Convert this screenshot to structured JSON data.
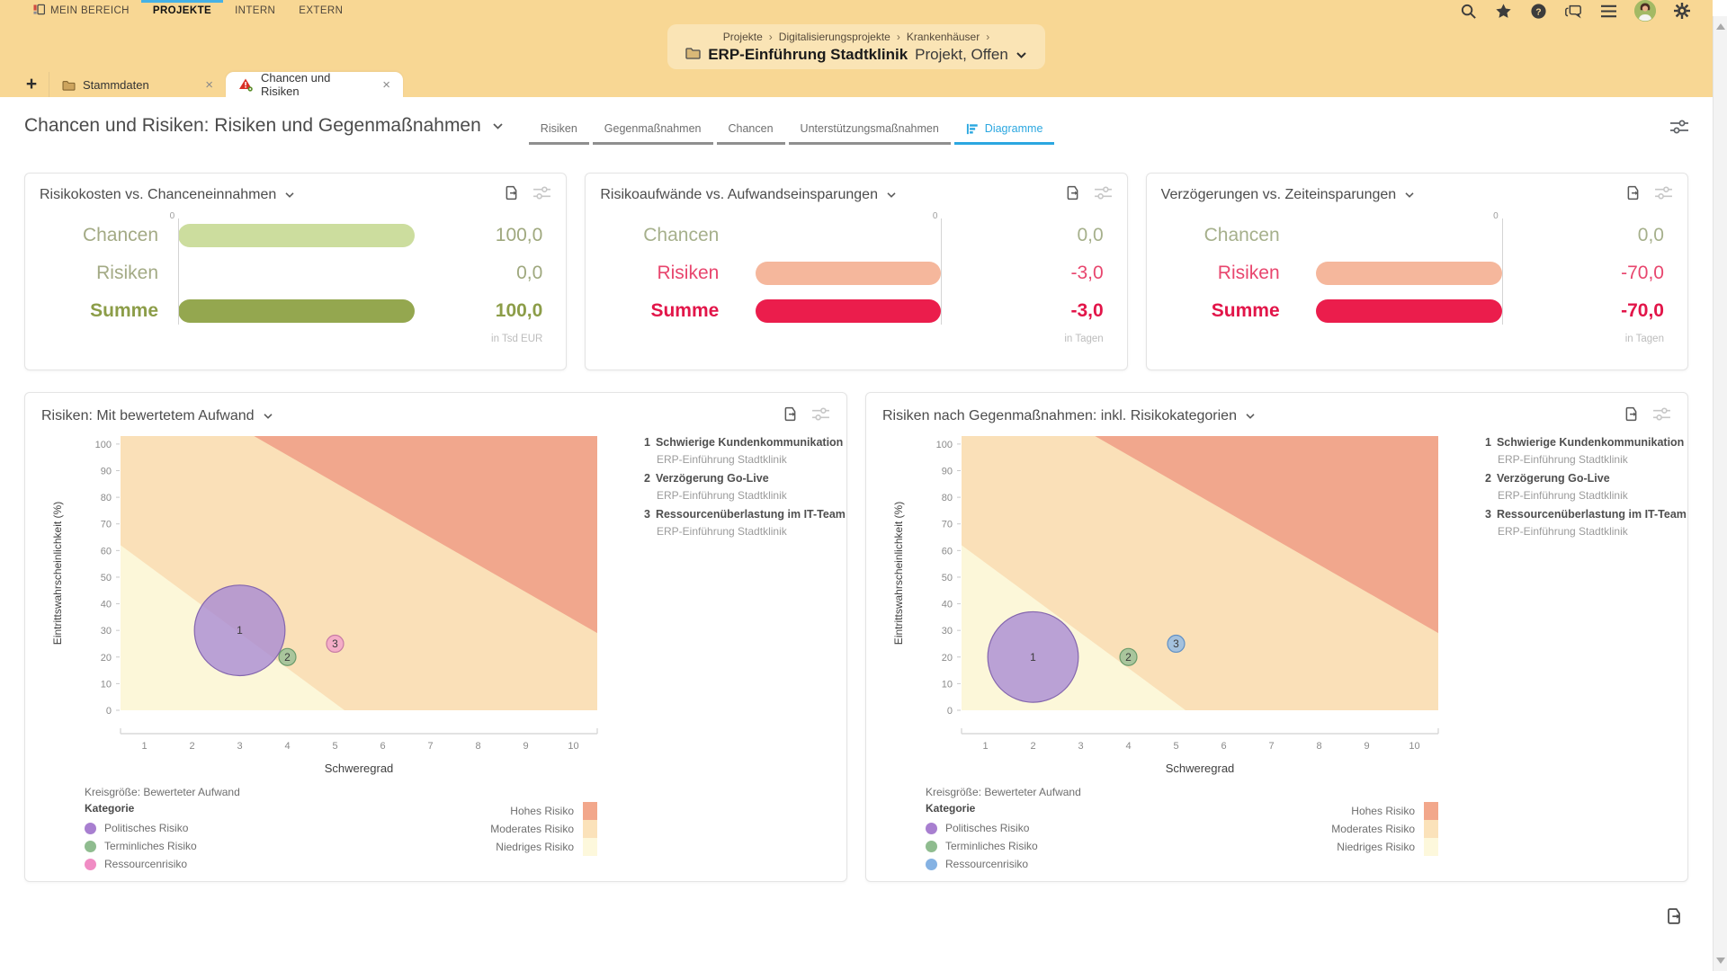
{
  "app": {
    "nav": {
      "accent_color": "#45B1E5",
      "items": [
        {
          "label": "MEIN BEREICH",
          "active": false,
          "icon": "workspace-icon"
        },
        {
          "label": "PROJEKTE",
          "active": true
        },
        {
          "label": "INTERN",
          "active": false
        },
        {
          "label": "EXTERN",
          "active": false
        }
      ],
      "icons": [
        "search-icon",
        "star-icon",
        "help-icon",
        "chat-icon",
        "menu-icon",
        "user-avatar",
        "gear-icon"
      ]
    },
    "breadcrumb": {
      "separator": "›",
      "path": [
        "Projekte",
        "Digitalisierungsprojekte",
        "Krankenhäuser"
      ],
      "current": "ERP-Einführung Stadtklinik",
      "status": "Projekt, Offen"
    },
    "doc_tabs": [
      {
        "label": "Stammdaten",
        "icon": "folder-icon",
        "active": false
      },
      {
        "label": "Chancen und Risiken",
        "icon": "risk-warning-icon",
        "active": true
      }
    ],
    "page_title": "Chancen und Risiken: Risiken und Gegenmaßnahmen",
    "subtabs": [
      {
        "label": "Risiken",
        "active": false
      },
      {
        "label": "Gegenmaßnahmen",
        "active": false
      },
      {
        "label": "Chancen",
        "active": false
      },
      {
        "label": "Unterstützungsmaßnahmen",
        "active": false
      },
      {
        "label": "Diagramme",
        "active": true,
        "icon": "bar-chart-icon"
      }
    ],
    "subtab_active_color": "#2BA7E0"
  },
  "summary_cards": [
    {
      "title": "Risikokosten vs. Chanceneinnahmen",
      "unit": "in Tsd EUR",
      "direction": "positive",
      "zero_label": "0",
      "chart_data": {
        "type": "bar",
        "categories": [
          "Chancen",
          "Risiken",
          "Summe"
        ],
        "values": [
          100.0,
          0.0,
          100.0
        ]
      },
      "rows": [
        {
          "label": "Chancen",
          "value": "100,0",
          "fraction": 1,
          "bar_color": "#CCDD9E",
          "label_color": "#A3AA85",
          "value_color": "#9FA87E",
          "bold": false
        },
        {
          "label": "Risiken",
          "value": "0,0",
          "fraction": 0,
          "bar_color": "#CCDD9E",
          "label_color": "#A3AA85",
          "value_color": "#9FA87E",
          "bold": false
        },
        {
          "label": "Summe",
          "value": "100,0",
          "fraction": 1,
          "bar_color": "#94A74F",
          "label_color": "#8C9D48",
          "value_color": "#8C9D48",
          "bold": true
        }
      ]
    },
    {
      "title": "Risikoaufwände vs. Aufwandseinsparungen",
      "unit": "in Tagen",
      "direction": "negative",
      "zero_label": "0",
      "chart_data": {
        "type": "bar",
        "categories": [
          "Chancen",
          "Risiken",
          "Summe"
        ],
        "values": [
          0.0,
          -3.0,
          -3.0
        ]
      },
      "rows": [
        {
          "label": "Chancen",
          "value": "0,0",
          "fraction": 0,
          "bar_color": "#F5B79C",
          "label_color": "#A6B08C",
          "value_color": "#A6B08C",
          "bold": false
        },
        {
          "label": "Risiken",
          "value": "-3,0",
          "fraction": 1,
          "bar_color": "#F5B79C",
          "label_color": "#E8466E",
          "value_color": "#E8466E",
          "bold": false
        },
        {
          "label": "Summe",
          "value": "-3,0",
          "fraction": 1,
          "bar_color": "#EB1D4C",
          "label_color": "#E21549",
          "value_color": "#E21549",
          "bold": true
        }
      ]
    },
    {
      "title": "Verzögerungen vs. Zeiteinsparungen",
      "unit": "in Tagen",
      "direction": "negative",
      "zero_label": "0",
      "chart_data": {
        "type": "bar",
        "categories": [
          "Chancen",
          "Risiken",
          "Summe"
        ],
        "values": [
          0.0,
          -70.0,
          -70.0
        ]
      },
      "rows": [
        {
          "label": "Chancen",
          "value": "0,0",
          "fraction": 0,
          "bar_color": "#F5B79C",
          "label_color": "#A6B08C",
          "value_color": "#A6B08C",
          "bold": false
        },
        {
          "label": "Risiken",
          "value": "-70,0",
          "fraction": 1,
          "bar_color": "#F5B79C",
          "label_color": "#E8466E",
          "value_color": "#E8466E",
          "bold": false
        },
        {
          "label": "Summe",
          "value": "-70,0",
          "fraction": 1,
          "bar_color": "#EB1D4C",
          "label_color": "#E21549",
          "value_color": "#E21549",
          "bold": true
        }
      ]
    }
  ],
  "charts": [
    {
      "title": "Risiken: Mit bewertetem Aufwand",
      "chart_data": {
        "type": "scatter",
        "xlabel": "Schweregrad",
        "ylabel": "Eintrittswahrscheinlichkeit (%)",
        "xlim": [
          0.5,
          10.5
        ],
        "ylim": [
          0,
          103
        ],
        "x_ticks": [
          1,
          2,
          3,
          4,
          5,
          6,
          7,
          8,
          9,
          10
        ],
        "y_ticks": [
          0,
          10,
          20,
          30,
          40,
          50,
          60,
          70,
          80,
          90,
          100
        ],
        "size_caption": "Kreisgröße: Bewerteter Aufwand",
        "bands": [
          {
            "label": "Moderates Risiko",
            "color": "#FAE0B8",
            "polygon": "base"
          },
          {
            "label": "Niedriges Risiko",
            "color": "#FCF7D9",
            "polygon": [
              [
                0.5,
                62
              ],
              [
                0.5,
                0
              ],
              [
                5.2,
                0
              ]
            ]
          },
          {
            "label": "Hohes Risiko",
            "color": "#F1A78D",
            "polygon": [
              [
                3.3,
                103
              ],
              [
                10.5,
                103
              ],
              [
                10.5,
                29
              ]
            ]
          }
        ],
        "points": [
          {
            "n": "1",
            "x": 3,
            "y": 30,
            "r": 17,
            "category": "Politisches Risiko",
            "fill": "#A98BD3",
            "stroke": "#8466AE"
          },
          {
            "n": "2",
            "x": 4,
            "y": 20,
            "r": 3.2,
            "category": "Terminliches Risiko",
            "fill": "#95BE95",
            "stroke": "#6B9B6B"
          },
          {
            "n": "3",
            "x": 5,
            "y": 25,
            "r": 3.2,
            "category": "Ressourcenrisiko",
            "fill": "#F2A0CB",
            "stroke": "#C77BA4"
          }
        ],
        "category_legend": {
          "title": "Kategorie",
          "items": [
            {
              "label": "Politisches Risiko",
              "color": "#A87FD0"
            },
            {
              "label": "Terminliches Risiko",
              "color": "#8FBC8F"
            },
            {
              "label": "Ressourcenrisiko",
              "color": "#F08CC4"
            }
          ]
        },
        "band_legend": [
          {
            "label": "Hohes Risiko",
            "color": "#F2A78B"
          },
          {
            "label": "Moderates Risiko",
            "color": "#FBE2BA"
          },
          {
            "label": "Niedriges Risiko",
            "color": "#FDF8DC"
          }
        ]
      },
      "items": [
        {
          "n": "1",
          "title": "Schwierige Kundenkommunikation",
          "subtitle": "ERP-Einführung Stadtklinik"
        },
        {
          "n": "2",
          "title": "Verzögerung Go-Live",
          "subtitle": "ERP-Einführung Stadtklinik"
        },
        {
          "n": "3",
          "title": "Ressourcenüberlastung im IT-Team",
          "subtitle": "ERP-Einführung Stadtklinik"
        }
      ]
    },
    {
      "title": "Risiken nach Gegenmaßnahmen: inkl. Risikokategorien",
      "chart_data": {
        "type": "scatter",
        "xlabel": "Schweregrad",
        "ylabel": "Eintrittswahrscheinlichkeit (%)",
        "xlim": [
          0.5,
          10.5
        ],
        "ylim": [
          0,
          103
        ],
        "x_ticks": [
          1,
          2,
          3,
          4,
          5,
          6,
          7,
          8,
          9,
          10
        ],
        "y_ticks": [
          0,
          10,
          20,
          30,
          40,
          50,
          60,
          70,
          80,
          90,
          100
        ],
        "size_caption": "Kreisgröße: Bewerteter Aufwand",
        "bands": [
          {
            "label": "Moderates Risiko",
            "color": "#FAE0B8",
            "polygon": "base"
          },
          {
            "label": "Niedriges Risiko",
            "color": "#FCF7D9",
            "polygon": [
              [
                0.5,
                62
              ],
              [
                0.5,
                0
              ],
              [
                5.2,
                0
              ]
            ]
          },
          {
            "label": "Hohes Risiko",
            "color": "#F1A78D",
            "polygon": [
              [
                3.3,
                103
              ],
              [
                10.5,
                103
              ],
              [
                10.5,
                29
              ]
            ]
          }
        ],
        "points": [
          {
            "n": "1",
            "x": 2,
            "y": 20,
            "r": 17,
            "category": "Politisches Risiko",
            "fill": "#A98BD3",
            "stroke": "#8466AE"
          },
          {
            "n": "2",
            "x": 4,
            "y": 20,
            "r": 3.2,
            "category": "Terminliches Risiko",
            "fill": "#95BE95",
            "stroke": "#6B9B6B"
          },
          {
            "n": "3",
            "x": 5,
            "y": 25,
            "r": 3.2,
            "category": "Ressourcenrisiko",
            "fill": "#8FB9E6",
            "stroke": "#6090C5"
          }
        ],
        "category_legend": {
          "title": "Kategorie",
          "items": [
            {
              "label": "Politisches Risiko",
              "color": "#A87FD0"
            },
            {
              "label": "Terminliches Risiko",
              "color": "#8FBC8F"
            },
            {
              "label": "Ressourcenrisiko",
              "color": "#85B2E3"
            }
          ]
        },
        "band_legend": [
          {
            "label": "Hohes Risiko",
            "color": "#F2A78B"
          },
          {
            "label": "Moderates Risiko",
            "color": "#FBE2BA"
          },
          {
            "label": "Niedriges Risiko",
            "color": "#FDF8DC"
          }
        ]
      },
      "items": [
        {
          "n": "1",
          "title": "Schwierige Kundenkommunikation",
          "subtitle": "ERP-Einführung Stadtklinik"
        },
        {
          "n": "2",
          "title": "Verzögerung Go-Live",
          "subtitle": "ERP-Einführung Stadtklinik"
        },
        {
          "n": "3",
          "title": "Ressourcenüberlastung im IT-Team",
          "subtitle": "ERP-Einführung Stadtklinik"
        }
      ]
    }
  ]
}
